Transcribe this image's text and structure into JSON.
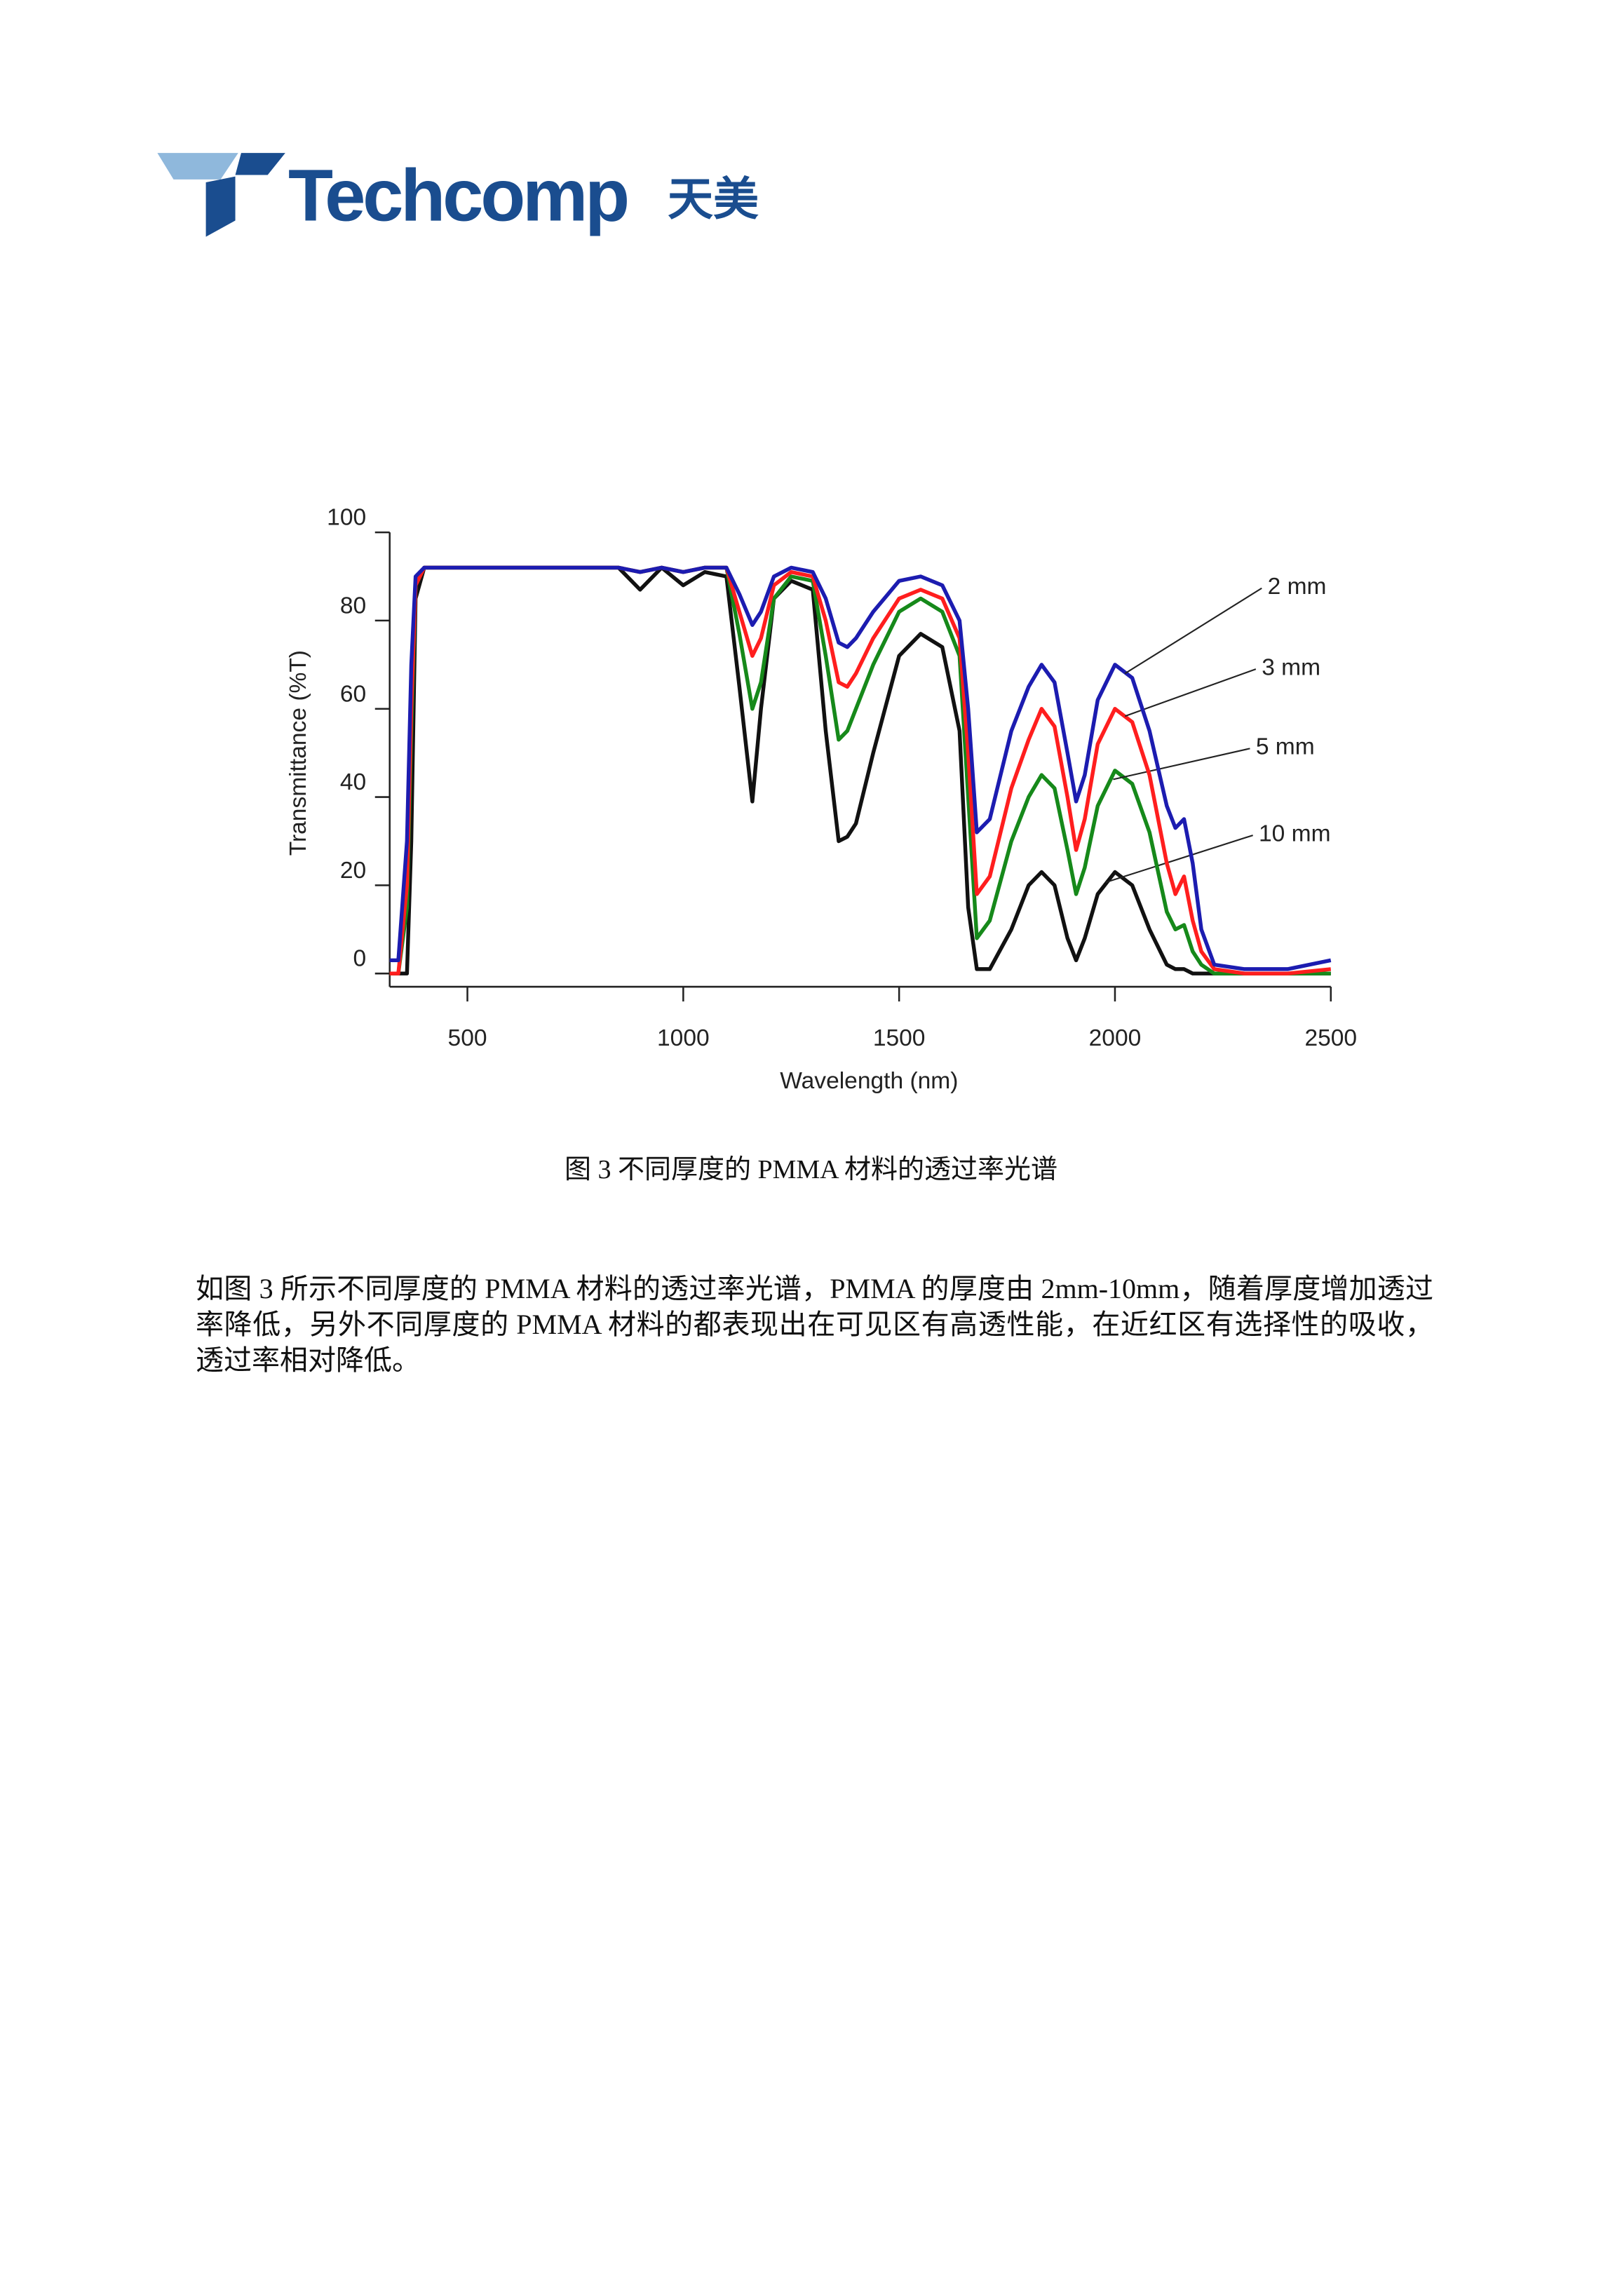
{
  "logo": {
    "name": "Techcomp",
    "chinese": "天美"
  },
  "chart_data": {
    "type": "line",
    "xlabel": "Wavelength (nm)",
    "ylabel": "Transmittance (%T)",
    "xlim": [
      320,
      2500
    ],
    "ylim": [
      -3,
      100
    ],
    "xticks": [
      500,
      1000,
      1500,
      2000,
      2500
    ],
    "yticks": [
      0,
      20,
      40,
      60,
      80,
      100
    ],
    "x": [
      320,
      340,
      360,
      370,
      380,
      400,
      500,
      700,
      850,
      900,
      950,
      1000,
      1050,
      1100,
      1130,
      1160,
      1180,
      1210,
      1250,
      1300,
      1330,
      1360,
      1380,
      1400,
      1440,
      1500,
      1550,
      1600,
      1640,
      1660,
      1680,
      1710,
      1760,
      1800,
      1830,
      1860,
      1890,
      1910,
      1930,
      1960,
      2000,
      2040,
      2080,
      2120,
      2140,
      2160,
      2180,
      2200,
      2230,
      2300,
      2400,
      2500
    ],
    "series": [
      {
        "name": "2 mm",
        "color": "#1c1cb0",
        "values": [
          3,
          3,
          30,
          70,
          90,
          92,
          92,
          92,
          92,
          91,
          92,
          91,
          92,
          92,
          86,
          79,
          82,
          90,
          92,
          91,
          85,
          75,
          74,
          76,
          82,
          89,
          90,
          88,
          80,
          60,
          32,
          35,
          55,
          65,
          70,
          66,
          50,
          39,
          45,
          62,
          70,
          67,
          55,
          38,
          33,
          35,
          25,
          10,
          2,
          1,
          1,
          3
        ]
      },
      {
        "name": "3 mm",
        "color": "#ff1e1e",
        "values": [
          0,
          0,
          20,
          60,
          88,
          92,
          92,
          92,
          92,
          91,
          92,
          91,
          92,
          92,
          82,
          72,
          76,
          88,
          91,
          90,
          80,
          66,
          65,
          68,
          76,
          85,
          87,
          85,
          76,
          50,
          18,
          22,
          42,
          53,
          60,
          56,
          40,
          28,
          35,
          52,
          60,
          57,
          45,
          25,
          18,
          22,
          12,
          5,
          1,
          0,
          0,
          1
        ]
      },
      {
        "name": "5 mm",
        "color": "#16891a",
        "values": [
          0,
          0,
          15,
          55,
          88,
          92,
          92,
          92,
          92,
          91,
          92,
          91,
          92,
          92,
          77,
          60,
          66,
          85,
          90,
          89,
          72,
          53,
          55,
          60,
          70,
          82,
          85,
          82,
          72,
          40,
          8,
          12,
          30,
          40,
          45,
          42,
          28,
          18,
          24,
          38,
          46,
          43,
          32,
          14,
          10,
          11,
          5,
          2,
          0,
          0,
          0,
          0
        ]
      },
      {
        "name": "10 mm",
        "color": "#111111",
        "values": [
          0,
          0,
          0,
          30,
          85,
          92,
          92,
          92,
          92,
          87,
          92,
          88,
          91,
          90,
          65,
          39,
          60,
          85,
          89,
          87,
          55,
          30,
          31,
          34,
          50,
          72,
          77,
          74,
          55,
          15,
          1,
          1,
          10,
          20,
          23,
          20,
          8,
          3,
          8,
          18,
          23,
          20,
          10,
          2,
          1,
          1,
          0,
          0,
          0,
          0,
          0,
          0
        ]
      }
    ]
  },
  "caption": "图 3 不同厚度的 PMMA 材料的透过率光谱",
  "paragraph": "如图 3 所示不同厚度的 PMMA 材料的透过率光谱，PMMA 的厚度由 2mm-10mm，随着厚度增加透过率降低，另外不同厚度的 PMMA 材料的都表现出在可见区有高透性能，在近红区有选择性的吸收，透过率相对降低。"
}
